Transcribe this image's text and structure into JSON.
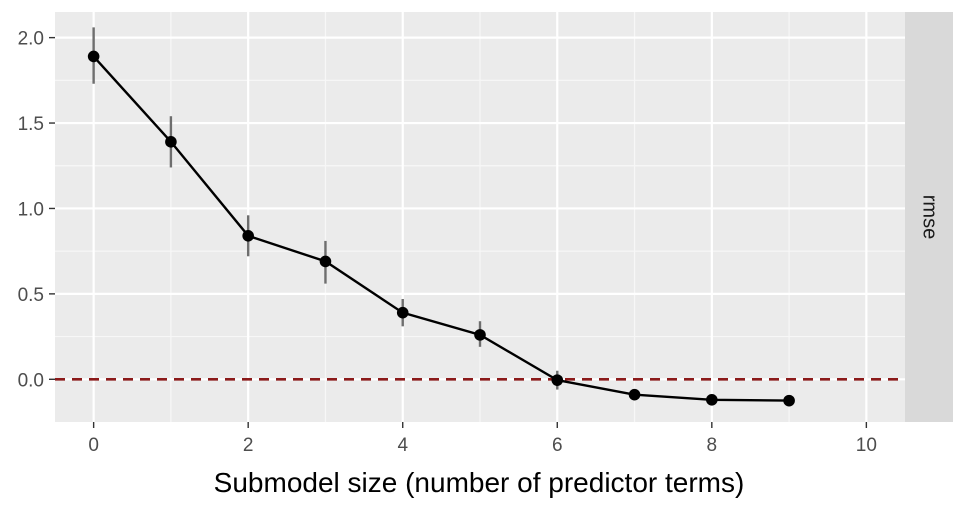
{
  "chart_data": {
    "type": "line",
    "title": "",
    "xlabel": "Submodel size (number of predictor terms)",
    "ylabel": "",
    "facet_label": "rmse",
    "xlim": [
      -0.5,
      10.5
    ],
    "ylim": [
      -0.25,
      2.15
    ],
    "x_ticks": [
      0,
      2,
      4,
      6,
      8,
      10
    ],
    "x_tick_labels": [
      "0",
      "2",
      "4",
      "6",
      "8",
      "10"
    ],
    "y_ticks": [
      0.0,
      0.5,
      1.0,
      1.5,
      2.0
    ],
    "y_tick_labels": [
      "0.0",
      "0.5",
      "1.0",
      "1.5",
      "2.0"
    ],
    "grid": true,
    "reference_line": {
      "y": 0.0,
      "style": "dashed",
      "color": "#8b1a1a"
    },
    "series": [
      {
        "x": [
          0,
          1,
          2,
          3,
          4,
          5,
          6,
          7,
          8,
          9
        ],
        "y": [
          1.89,
          1.39,
          0.84,
          0.69,
          0.39,
          0.26,
          -0.005,
          -0.09,
          -0.12,
          -0.125
        ],
        "lower": [
          1.73,
          1.24,
          0.72,
          0.56,
          0.31,
          0.19,
          -0.06,
          -0.12,
          -0.14,
          -0.14
        ],
        "upper": [
          2.06,
          1.54,
          0.96,
          0.81,
          0.47,
          0.34,
          0.05,
          -0.06,
          -0.1,
          -0.11
        ],
        "color": "#000000"
      }
    ]
  },
  "colors": {
    "panel_bg": "#ebebeb",
    "grid_major": "#ffffff",
    "grid_minor": "#f7f7f7",
    "strip_bg": "#d9d9d9",
    "error_bar": "#6e6e6e"
  }
}
